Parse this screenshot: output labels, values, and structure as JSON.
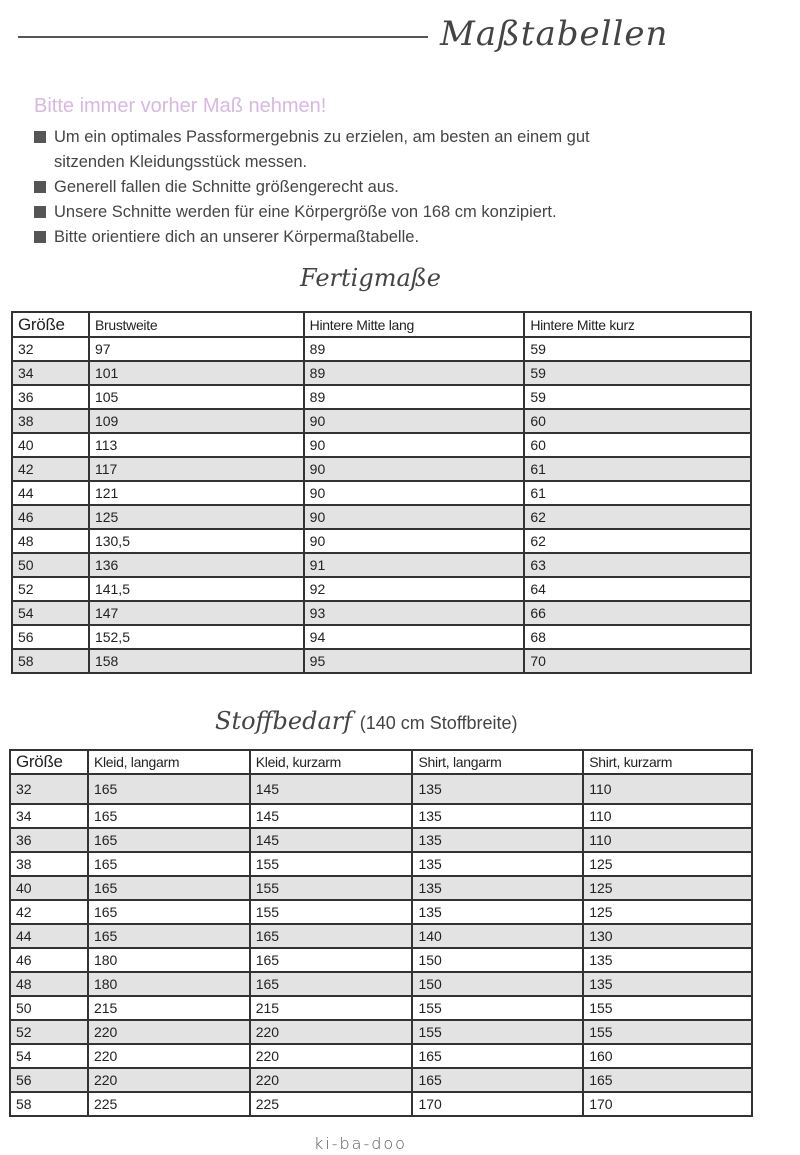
{
  "header": {
    "title": "Maßtabellen"
  },
  "intro": {
    "lead": "Bitte immer vorher Maß nehmen!",
    "bullets": [
      "Um ein optimales Passformergebnis zu erzielen, am besten an einem gut sitzenden Kleidungsstück messen.",
      "Generell fallen die Schnitte größengerecht aus.",
      "Unsere Schnitte werden für eine Körpergröße von 168 cm konzipiert.",
      "Bitte orientiere dich an unserer Körpermaßtabelle."
    ]
  },
  "fertigmasse": {
    "title": "Fertigmaße",
    "columns": [
      "Größe",
      "Brustweite",
      "Hintere Mitte lang",
      "Hintere Mitte kurz"
    ],
    "rows": [
      [
        "32",
        "97",
        "89",
        "59"
      ],
      [
        "34",
        "101",
        "89",
        "59"
      ],
      [
        "36",
        "105",
        "89",
        "59"
      ],
      [
        "38",
        "109",
        "90",
        "60"
      ],
      [
        "40",
        "113",
        "90",
        "60"
      ],
      [
        "42",
        "117",
        "90",
        "61"
      ],
      [
        "44",
        "121",
        "90",
        "61"
      ],
      [
        "46",
        "125",
        "90",
        "62"
      ],
      [
        "48",
        "130,5",
        "90",
        "62"
      ],
      [
        "50",
        "136",
        "91",
        "63"
      ],
      [
        "52",
        "141,5",
        "92",
        "64"
      ],
      [
        "54",
        "147",
        "93",
        "66"
      ],
      [
        "56",
        "152,5",
        "94",
        "68"
      ],
      [
        "58",
        "158",
        "95",
        "70"
      ]
    ]
  },
  "stoffbedarf": {
    "title": "Stoffbedarf",
    "subtitle": "(140 cm Stoffbreite)",
    "columns": [
      "Größe",
      "Kleid, langarm",
      "Kleid, kurzarm",
      "Shirt, langarm",
      "Shirt, kurzarm"
    ],
    "rows": [
      [
        "32",
        "165",
        "145",
        "135",
        "110"
      ],
      [
        "34",
        "165",
        "145",
        "135",
        "110"
      ],
      [
        "36",
        "165",
        "145",
        "135",
        "110"
      ],
      [
        "38",
        "165",
        "155",
        "135",
        "125"
      ],
      [
        "40",
        "165",
        "155",
        "135",
        "125"
      ],
      [
        "42",
        "165",
        "155",
        "135",
        "125"
      ],
      [
        "44",
        "165",
        "165",
        "140",
        "130"
      ],
      [
        "46",
        "180",
        "165",
        "150",
        "135"
      ],
      [
        "48",
        "180",
        "165",
        "150",
        "135"
      ],
      [
        "50",
        "215",
        "215",
        "155",
        "155"
      ],
      [
        "52",
        "220",
        "220",
        "155",
        "155"
      ],
      [
        "54",
        "220",
        "220",
        "165",
        "160"
      ],
      [
        "56",
        "220",
        "220",
        "165",
        "165"
      ],
      [
        "58",
        "225",
        "225",
        "170",
        "170"
      ]
    ]
  },
  "footer": {
    "brand": "ki-ba-doo"
  },
  "colors": {
    "lead": "#d8b8e0",
    "row_shade": "#e3e3e3",
    "border": "#333333"
  }
}
